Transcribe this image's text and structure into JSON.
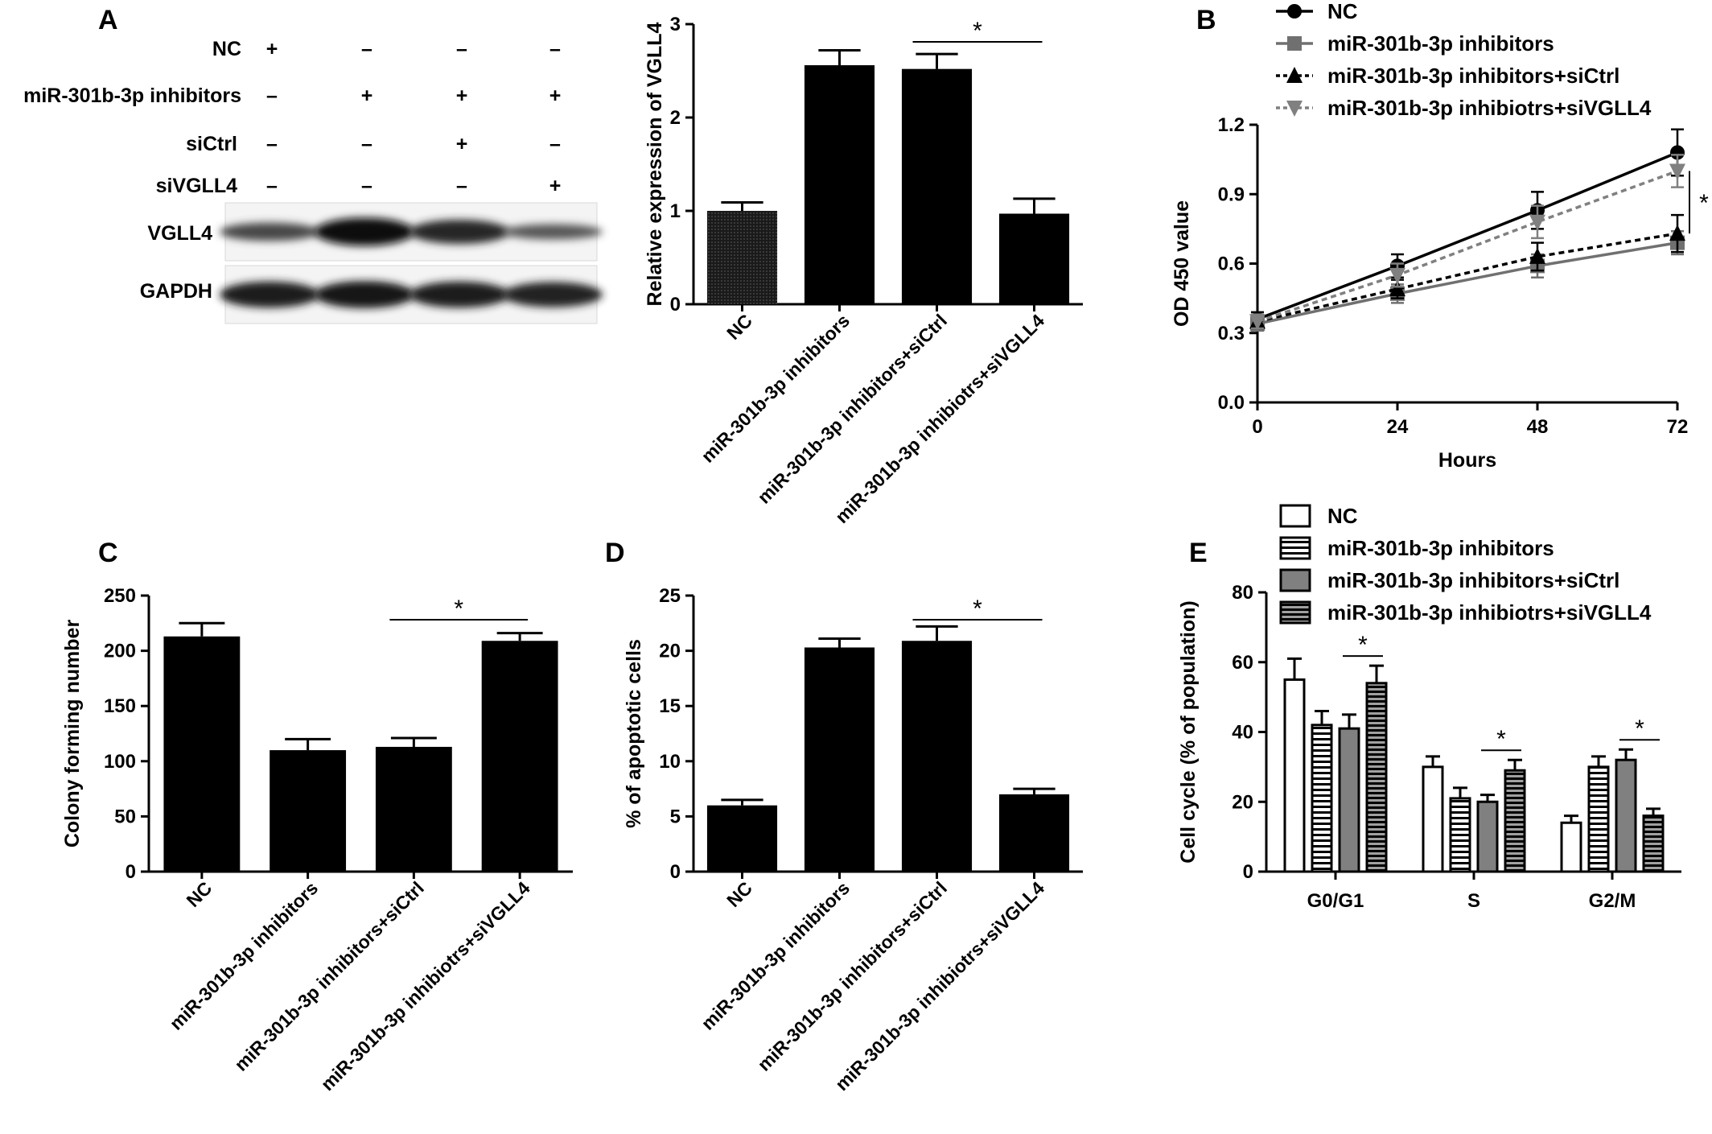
{
  "figure": {
    "panels": {
      "A": {
        "letter": "A"
      },
      "B": {
        "letter": "B"
      },
      "C": {
        "letter": "C"
      },
      "D": {
        "letter": "D"
      },
      "E": {
        "letter": "E"
      }
    }
  },
  "western_blot": {
    "row_labels": [
      "NC",
      "miR-301b-3p inhibitors",
      "siCtrl",
      "siVGLL4"
    ],
    "signs": [
      [
        "+",
        "–",
        "–",
        "–"
      ],
      [
        "–",
        "+",
        "+",
        "+"
      ],
      [
        "–",
        "–",
        "+",
        "–"
      ],
      [
        "–",
        "–",
        "–",
        "+"
      ]
    ],
    "blot_labels": [
      "VGLL4",
      "GAPDH"
    ],
    "band_intensity": {
      "VGLL4": [
        0.45,
        0.95,
        0.75,
        0.3
      ],
      "GAPDH": [
        0.85,
        0.9,
        0.85,
        0.8
      ]
    }
  },
  "chart_data": [
    {
      "id": "A-bar",
      "type": "bar",
      "title": "",
      "ylabel": "Relative expression of VGLL4",
      "xlabel": "",
      "categories": [
        "NC",
        "miR-301b-3p inhibitors",
        "miR-301b-3p inhibitors+siCtrl",
        "miR-301b-3p inhibiotrs+siVGLL4"
      ],
      "values": [
        1.0,
        2.56,
        2.52,
        0.97
      ],
      "errors": [
        0.09,
        0.16,
        0.16,
        0.16
      ],
      "ylim": [
        0,
        3
      ],
      "yticks": [
        0,
        1,
        2,
        3
      ],
      "significance": [
        {
          "from": 2,
          "to": 3,
          "label": "*"
        }
      ]
    },
    {
      "id": "B-line",
      "type": "line",
      "title": "",
      "xlabel": "Hours",
      "ylabel": "OD 450 value",
      "x": [
        0,
        24,
        48,
        72
      ],
      "xticks": [
        0,
        24,
        48,
        72
      ],
      "ylim": [
        0,
        1.2
      ],
      "yticks": [
        "0.0",
        "0.3",
        "0.6",
        "0.9",
        "1.2"
      ],
      "series": [
        {
          "name": "NC",
          "values": [
            0.36,
            0.59,
            0.83,
            1.08
          ],
          "errors": [
            0.03,
            0.05,
            0.08,
            0.1
          ],
          "marker": "circle",
          "color": "#000000",
          "dash": ""
        },
        {
          "name": "miR-301b-3p inhibitors",
          "values": [
            0.34,
            0.47,
            0.59,
            0.69
          ],
          "errors": [
            0.03,
            0.04,
            0.05,
            0.05
          ],
          "marker": "square",
          "color": "#707070",
          "dash": ""
        },
        {
          "name": "miR-301b-3p inhibitors+siCtrl",
          "values": [
            0.35,
            0.49,
            0.63,
            0.73
          ],
          "errors": [
            0.03,
            0.04,
            0.06,
            0.08
          ],
          "marker": "triangle-up",
          "color": "#000000",
          "dash": "7,5"
        },
        {
          "name": "miR-301b-3p inhibiotrs+siVGLL4",
          "values": [
            0.35,
            0.55,
            0.78,
            1.0
          ],
          "errors": [
            0.03,
            0.05,
            0.07,
            0.07
          ],
          "marker": "triangle-down",
          "color": "#808080",
          "dash": "7,5"
        }
      ],
      "significance": [
        {
          "label": "*"
        }
      ]
    },
    {
      "id": "C-bar",
      "type": "bar",
      "title": "",
      "ylabel": "Colony forming number",
      "xlabel": "",
      "categories": [
        "NC",
        "miR-301b-3p inhibitors",
        "miR-301b-3p inhibitors+siCtrl",
        "miR-301b-3p inhibiotrs+siVGLL4"
      ],
      "values": [
        213,
        110,
        113,
        209
      ],
      "errors": [
        12,
        10,
        8,
        7
      ],
      "ylim": [
        0,
        250
      ],
      "yticks": [
        0,
        50,
        100,
        150,
        200,
        250
      ],
      "significance": [
        {
          "from": 2,
          "to": 3,
          "label": "*"
        }
      ]
    },
    {
      "id": "D-bar",
      "type": "bar",
      "title": "",
      "ylabel": "% of apoptotic cells",
      "xlabel": "",
      "categories": [
        "NC",
        "miR-301b-3p inhibitors",
        "miR-301b-3p inhibitors+siCtrl",
        "miR-301b-3p inhibiotrs+siVGLL4"
      ],
      "values": [
        6.0,
        20.3,
        20.9,
        7.0
      ],
      "errors": [
        0.5,
        0.8,
        1.3,
        0.5
      ],
      "ylim": [
        0,
        25
      ],
      "yticks": [
        0,
        5,
        10,
        15,
        20,
        25
      ],
      "significance": [
        {
          "from": 2,
          "to": 3,
          "label": "*"
        }
      ]
    },
    {
      "id": "E-grouped-bar",
      "type": "bar",
      "title": "",
      "ylabel": "Cell cycle (% of population)",
      "xlabel": "",
      "categories": [
        "G0/G1",
        "S",
        "G2/M"
      ],
      "ylim": [
        0,
        80
      ],
      "yticks": [
        0,
        20,
        40,
        60,
        80
      ],
      "series": [
        {
          "name": "NC",
          "values": [
            55,
            30,
            14
          ],
          "errors": [
            6,
            3,
            2
          ],
          "fill": "white"
        },
        {
          "name": "miR-301b-3p inhibitors",
          "values": [
            42,
            21,
            30
          ],
          "errors": [
            4,
            3,
            3
          ],
          "fill": "hstripe-light"
        },
        {
          "name": "miR-301b-3p inhibitors+siCtrl",
          "values": [
            41,
            20,
            32
          ],
          "errors": [
            4,
            2,
            3
          ],
          "fill": "gray"
        },
        {
          "name": "miR-301b-3p inhibiotrs+siVGLL4",
          "values": [
            54,
            29,
            16
          ],
          "errors": [
            5,
            3,
            2
          ],
          "fill": "hstripe-dark"
        }
      ],
      "significance": [
        {
          "group": 0,
          "from": 2,
          "to": 3,
          "label": "*"
        },
        {
          "group": 1,
          "from": 2,
          "to": 3,
          "label": "*"
        },
        {
          "group": 2,
          "from": 2,
          "to": 3,
          "label": "*"
        }
      ]
    }
  ]
}
